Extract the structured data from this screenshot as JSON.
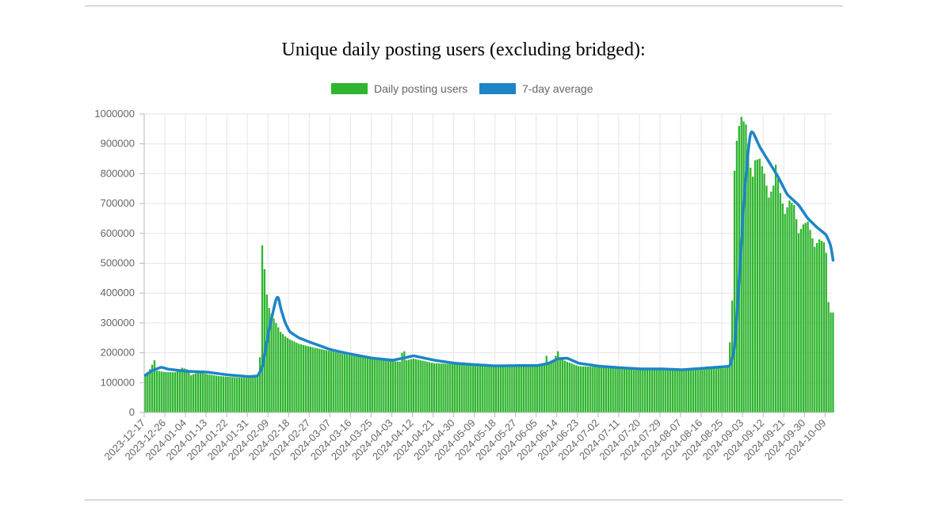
{
  "page": {
    "title": "Unique daily posting users (excluding bridged):"
  },
  "colors": {
    "bar": "#2fb52f",
    "bar_edge": "#dff2df",
    "line": "#1d85c6",
    "grid": "#e6e6e6",
    "axis": "#b9b9b9",
    "text": "#666666"
  },
  "chart_data": {
    "type": "bar",
    "title": "Unique daily posting users (excluding bridged):",
    "xlabel": "",
    "ylabel": "",
    "ylim": [
      0,
      1000000
    ],
    "yticks": [
      0,
      100000,
      200000,
      300000,
      400000,
      500000,
      600000,
      700000,
      800000,
      900000,
      1000000
    ],
    "grid": true,
    "legend_position": "top",
    "x_start": "2023-12-17",
    "x_end": "2024-10-12",
    "xticks": [
      "2023-12-17",
      "2023-12-26",
      "2024-01-04",
      "2024-01-13",
      "2024-01-22",
      "2024-01-31",
      "2024-02-09",
      "2024-02-18",
      "2024-02-27",
      "2024-03-07",
      "2024-03-16",
      "2024-03-25",
      "2024-04-03",
      "2024-04-12",
      "2024-04-21",
      "2024-04-30",
      "2024-05-09",
      "2024-05-18",
      "2024-05-27",
      "2024-06-05",
      "2024-06-14",
      "2024-06-23",
      "2024-07-02",
      "2024-07-11",
      "2024-07-20",
      "2024-07-29",
      "2024-08-07",
      "2024-08-16",
      "2024-08-25",
      "2024-09-03",
      "2024-09-12",
      "2024-09-21",
      "2024-09-30",
      "2024-10-09"
    ],
    "series": [
      {
        "name": "Daily posting users",
        "kind": "bar",
        "color": "#2fb52f",
        "anchors": [
          [
            "2023-12-17",
            125000
          ],
          [
            "2023-12-19",
            145000
          ],
          [
            "2023-12-21",
            175000
          ],
          [
            "2023-12-22",
            140000
          ],
          [
            "2023-12-26",
            135000
          ],
          [
            "2023-12-30",
            135000
          ],
          [
            "2024-01-02",
            150000
          ],
          [
            "2024-01-04",
            145000
          ],
          [
            "2024-01-06",
            125000
          ],
          [
            "2024-01-09",
            135000
          ],
          [
            "2024-01-13",
            128000
          ],
          [
            "2024-01-18",
            122000
          ],
          [
            "2024-01-25",
            118000
          ],
          [
            "2024-01-31",
            115000
          ],
          [
            "2024-02-04",
            125000
          ],
          [
            "2024-02-05",
            185000
          ],
          [
            "2024-02-06",
            560000
          ],
          [
            "2024-02-07",
            480000
          ],
          [
            "2024-02-08",
            395000
          ],
          [
            "2024-02-09",
            350000
          ],
          [
            "2024-02-10",
            330000
          ],
          [
            "2024-02-12",
            300000
          ],
          [
            "2024-02-14",
            270000
          ],
          [
            "2024-02-16",
            255000
          ],
          [
            "2024-02-18",
            245000
          ],
          [
            "2024-02-22",
            230000
          ],
          [
            "2024-02-27",
            220000
          ],
          [
            "2024-03-07",
            205000
          ],
          [
            "2024-03-16",
            190000
          ],
          [
            "2024-03-25",
            180000
          ],
          [
            "2024-04-03",
            172000
          ],
          [
            "2024-04-06",
            170000
          ],
          [
            "2024-04-07",
            200000
          ],
          [
            "2024-04-08",
            205000
          ],
          [
            "2024-04-09",
            175000
          ],
          [
            "2024-04-12",
            180000
          ],
          [
            "2024-04-21",
            165000
          ],
          [
            "2024-04-30",
            162000
          ],
          [
            "2024-05-09",
            158000
          ],
          [
            "2024-05-18",
            155000
          ],
          [
            "2024-05-27",
            158000
          ],
          [
            "2024-06-05",
            155000
          ],
          [
            "2024-06-08",
            160000
          ],
          [
            "2024-06-09",
            190000
          ],
          [
            "2024-06-10",
            170000
          ],
          [
            "2024-06-12",
            175000
          ],
          [
            "2024-06-14",
            205000
          ],
          [
            "2024-06-15",
            180000
          ],
          [
            "2024-06-18",
            170000
          ],
          [
            "2024-06-23",
            155000
          ],
          [
            "2024-07-02",
            152000
          ],
          [
            "2024-07-11",
            148000
          ],
          [
            "2024-07-20",
            143000
          ],
          [
            "2024-07-29",
            145000
          ],
          [
            "2024-08-07",
            142000
          ],
          [
            "2024-08-16",
            148000
          ],
          [
            "2024-08-25",
            148000
          ],
          [
            "2024-08-27",
            150000
          ],
          [
            "2024-08-28",
            235000
          ],
          [
            "2024-08-29",
            375000
          ],
          [
            "2024-08-30",
            810000
          ],
          [
            "2024-08-31",
            910000
          ],
          [
            "2024-09-01",
            960000
          ],
          [
            "2024-09-02",
            990000
          ],
          [
            "2024-09-03",
            975000
          ],
          [
            "2024-09-04",
            965000
          ],
          [
            "2024-09-05",
            900000
          ],
          [
            "2024-09-06",
            820000
          ],
          [
            "2024-09-07",
            790000
          ],
          [
            "2024-09-08",
            845000
          ],
          [
            "2024-09-10",
            850000
          ],
          [
            "2024-09-12",
            800000
          ],
          [
            "2024-09-14",
            720000
          ],
          [
            "2024-09-16",
            760000
          ],
          [
            "2024-09-17",
            830000
          ],
          [
            "2024-09-19",
            735000
          ],
          [
            "2024-09-21",
            665000
          ],
          [
            "2024-09-23",
            710000
          ],
          [
            "2024-09-25",
            695000
          ],
          [
            "2024-09-27",
            600000
          ],
          [
            "2024-09-29",
            630000
          ],
          [
            "2024-10-01",
            640000
          ],
          [
            "2024-10-04",
            555000
          ],
          [
            "2024-10-06",
            580000
          ],
          [
            "2024-10-08",
            570000
          ],
          [
            "2024-10-09",
            535000
          ],
          [
            "2024-10-10",
            370000
          ],
          [
            "2024-10-11",
            335000
          ]
        ]
      },
      {
        "name": "7-day average",
        "kind": "line",
        "color": "#1d85c6",
        "anchors": [
          [
            "2023-12-17",
            125000
          ],
          [
            "2023-12-20",
            140000
          ],
          [
            "2023-12-24",
            152000
          ],
          [
            "2023-12-27",
            145000
          ],
          [
            "2024-01-04",
            138000
          ],
          [
            "2024-01-13",
            135000
          ],
          [
            "2024-01-22",
            126000
          ],
          [
            "2024-01-31",
            120000
          ],
          [
            "2024-02-04",
            122000
          ],
          [
            "2024-02-06",
            150000
          ],
          [
            "2024-02-09",
            280000
          ],
          [
            "2024-02-12",
            380000
          ],
          [
            "2024-02-13",
            390000
          ],
          [
            "2024-02-14",
            350000
          ],
          [
            "2024-02-16",
            300000
          ],
          [
            "2024-02-18",
            270000
          ],
          [
            "2024-02-22",
            250000
          ],
          [
            "2024-02-27",
            235000
          ],
          [
            "2024-03-07",
            210000
          ],
          [
            "2024-03-16",
            195000
          ],
          [
            "2024-03-25",
            182000
          ],
          [
            "2024-04-03",
            175000
          ],
          [
            "2024-04-08",
            183000
          ],
          [
            "2024-04-12",
            190000
          ],
          [
            "2024-04-21",
            175000
          ],
          [
            "2024-04-30",
            165000
          ],
          [
            "2024-05-09",
            160000
          ],
          [
            "2024-05-18",
            156000
          ],
          [
            "2024-05-27",
            157000
          ],
          [
            "2024-06-05",
            157000
          ],
          [
            "2024-06-10",
            165000
          ],
          [
            "2024-06-14",
            180000
          ],
          [
            "2024-06-18",
            182000
          ],
          [
            "2024-06-23",
            165000
          ],
          [
            "2024-07-02",
            155000
          ],
          [
            "2024-07-11",
            150000
          ],
          [
            "2024-07-20",
            146000
          ],
          [
            "2024-07-29",
            146000
          ],
          [
            "2024-08-07",
            143000
          ],
          [
            "2024-08-16",
            148000
          ],
          [
            "2024-08-25",
            153000
          ],
          [
            "2024-08-28",
            155000
          ],
          [
            "2024-08-30",
            210000
          ],
          [
            "2024-09-01",
            440000
          ],
          [
            "2024-09-03",
            700000
          ],
          [
            "2024-09-05",
            880000
          ],
          [
            "2024-09-06",
            940000
          ],
          [
            "2024-09-07",
            940000
          ],
          [
            "2024-09-10",
            890000
          ],
          [
            "2024-09-14",
            840000
          ],
          [
            "2024-09-18",
            790000
          ],
          [
            "2024-09-22",
            730000
          ],
          [
            "2024-09-27",
            695000
          ],
          [
            "2024-10-01",
            650000
          ],
          [
            "2024-10-05",
            620000
          ],
          [
            "2024-10-09",
            595000
          ],
          [
            "2024-10-11",
            560000
          ],
          [
            "2024-10-12",
            510000
          ]
        ]
      }
    ]
  }
}
